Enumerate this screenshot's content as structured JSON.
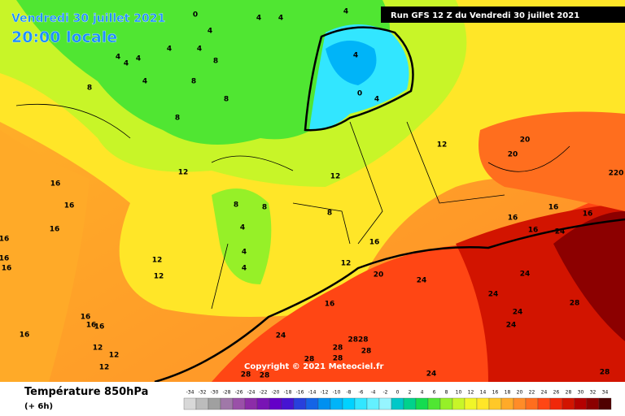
{
  "header": {
    "date": "Vendredi 30 juillet 2021",
    "time": "20:00 locale",
    "run": "Run GFS 12 Z du Vendredi 30 juillet 2021"
  },
  "copyright": "Copyright © 2021 Meteociel.fr",
  "footer": {
    "title": "Température 850hPa",
    "offset": "(+ 6h)"
  },
  "colorbar": {
    "ticks": [
      -34,
      -32,
      -30,
      -28,
      -26,
      -24,
      -22,
      -20,
      -18,
      -16,
      -14,
      -12,
      -10,
      -8,
      -6,
      -4,
      -2,
      0,
      2,
      4,
      6,
      8,
      10,
      12,
      14,
      16,
      18,
      20,
      22,
      24,
      26,
      28,
      30,
      32,
      34
    ],
    "colors": [
      "#d8d8d8",
      "#bcbcbc",
      "#a0a0a0",
      "#a078a8",
      "#9a50a8",
      "#8c2ca8",
      "#7814b4",
      "#6400c8",
      "#4614d2",
      "#2840dc",
      "#1464e6",
      "#0090f0",
      "#00b4f8",
      "#00d2ff",
      "#32e6ff",
      "#64f0ff",
      "#96f5ff",
      "#00c8c8",
      "#00d28c",
      "#14dc50",
      "#50e632",
      "#96f028",
      "#c8f528",
      "#f0f528",
      "#ffe628",
      "#ffc828",
      "#ffaa28",
      "#ff8c28",
      "#ff6e1e",
      "#ff4614",
      "#f0280a",
      "#d21400",
      "#b40000",
      "#8c0000",
      "#500000"
    ]
  },
  "map_labels": [
    "0",
    "4",
    "4",
    "4",
    "4",
    "4",
    "4",
    "4",
    "4",
    "4",
    "8",
    "8",
    "4",
    "8",
    "8",
    "8",
    "4",
    "0",
    "4",
    "12",
    "20",
    "20",
    "220",
    "12",
    "16",
    "16",
    "16",
    "8",
    "8",
    "4",
    "4",
    "4",
    "8",
    "12",
    "16",
    "16",
    "16",
    "24",
    "16",
    "16",
    "12",
    "20",
    "24",
    "24",
    "24",
    "28",
    "24",
    "24",
    "16",
    "24",
    "2828",
    "28",
    "28",
    "28",
    "28",
    "28",
    "28",
    "24",
    "28",
    "16",
    "16",
    "16",
    "12",
    "12",
    "16",
    "16",
    "16",
    "16",
    "12",
    "12",
    "12"
  ]
}
